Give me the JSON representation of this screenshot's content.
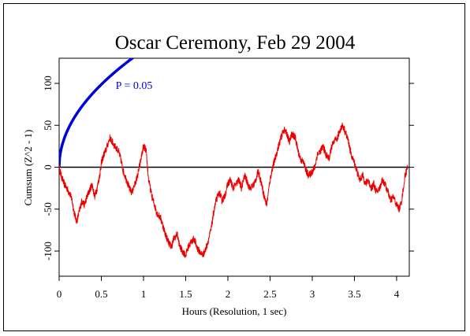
{
  "chart_data": {
    "type": "line",
    "title": "Oscar Ceremony, Feb 29 2004",
    "xlabel": "Hours (Resolution, 1 sec)",
    "ylabel": "Cumsum (Z^2 - 1)",
    "xlim": [
      0,
      4.15
    ],
    "ylim": [
      -130,
      130
    ],
    "xticks": [
      0,
      0.5,
      1,
      1.5,
      2,
      2.5,
      3,
      3.5,
      4
    ],
    "xtick_labels": [
      "0",
      "0.5",
      "1",
      "1.5",
      "2",
      "2.5",
      "3",
      "3.5",
      "4"
    ],
    "yticks": [
      -100,
      -50,
      0,
      50,
      100
    ],
    "ytick_labels": [
      "-100",
      "-50",
      "0",
      "50",
      "100"
    ],
    "grid": false,
    "reference_line": {
      "y": 0,
      "color": "#000000"
    },
    "envelope": {
      "label": "P = 0.05",
      "color": "#0000dd",
      "formula": "y = 1.645 * sqrt(2 * 3600 * x)",
      "x": [
        0,
        0.05,
        0.1,
        0.2,
        0.3,
        0.4,
        0.5,
        0.6,
        0.7,
        0.8,
        0.9
      ],
      "y": [
        0,
        31.2,
        44.1,
        62.4,
        76.4,
        88.3,
        98.7,
        108.1,
        116.8,
        124.8,
        132.4
      ]
    },
    "series": [
      {
        "color": "#ee0000",
        "x": [
          0,
          0.03,
          0.06,
          0.09,
          0.12,
          0.15,
          0.18,
          0.21,
          0.24,
          0.27,
          0.3,
          0.33,
          0.36,
          0.39,
          0.42,
          0.45,
          0.48,
          0.5,
          0.53,
          0.56,
          0.6,
          0.63,
          0.66,
          0.7,
          0.73,
          0.76,
          0.8,
          0.83,
          0.86,
          0.9,
          0.93,
          0.96,
          1.0,
          1.03,
          1.06,
          1.1,
          1.13,
          1.16,
          1.2,
          1.23,
          1.26,
          1.3,
          1.33,
          1.36,
          1.4,
          1.43,
          1.46,
          1.5,
          1.53,
          1.56,
          1.6,
          1.63,
          1.66,
          1.7,
          1.73,
          1.76,
          1.8,
          1.83,
          1.86,
          1.9,
          1.93,
          1.96,
          2.0,
          2.03,
          2.06,
          2.1,
          2.13,
          2.16,
          2.2,
          2.23,
          2.26,
          2.3,
          2.33,
          2.36,
          2.4,
          2.43,
          2.46,
          2.5,
          2.53,
          2.56,
          2.6,
          2.63,
          2.66,
          2.7,
          2.73,
          2.76,
          2.8,
          2.83,
          2.86,
          2.9,
          2.93,
          2.96,
          3.0,
          3.03,
          3.06,
          3.1,
          3.13,
          3.16,
          3.2,
          3.23,
          3.26,
          3.3,
          3.33,
          3.36,
          3.4,
          3.43,
          3.46,
          3.5,
          3.53,
          3.56,
          3.6,
          3.63,
          3.66,
          3.7,
          3.73,
          3.76,
          3.8,
          3.83,
          3.86,
          3.9,
          3.93,
          3.96,
          4.0,
          4.03,
          4.06,
          4.1,
          4.13
        ],
        "y": [
          0,
          -12,
          -20,
          -25,
          -30,
          -38,
          -55,
          -65,
          -52,
          -40,
          -45,
          -35,
          -28,
          -20,
          -35,
          -25,
          -10,
          5,
          15,
          22,
          35,
          30,
          25,
          20,
          10,
          -5,
          -15,
          -25,
          -30,
          -20,
          -10,
          5,
          25,
          20,
          -15,
          -35,
          -45,
          -55,
          -60,
          -70,
          -80,
          -90,
          -95,
          -85,
          -80,
          -95,
          -100,
          -105,
          -95,
          -90,
          -85,
          -95,
          -100,
          -105,
          -100,
          -90,
          -75,
          -55,
          -40,
          -30,
          -40,
          -35,
          -20,
          -15,
          -25,
          -20,
          -15,
          -25,
          -10,
          -18,
          -25,
          -22,
          -15,
          -5,
          -20,
          -35,
          -45,
          -15,
          0,
          10,
          25,
          35,
          45,
          40,
          30,
          40,
          35,
          20,
          10,
          5,
          -5,
          -10,
          -5,
          0,
          15,
          20,
          25,
          15,
          10,
          25,
          30,
          35,
          45,
          50,
          40,
          30,
          15,
          5,
          -5,
          -15,
          -10,
          -20,
          -15,
          -25,
          -20,
          -30,
          -25,
          -15,
          -20,
          -30,
          -40,
          -35,
          -45,
          -50,
          -40,
          -10,
          0
        ]
      }
    ],
    "annotations": [
      {
        "text": "P = 0.05",
        "x": 0.67,
        "y": 98,
        "color": "#0000dd"
      }
    ]
  }
}
